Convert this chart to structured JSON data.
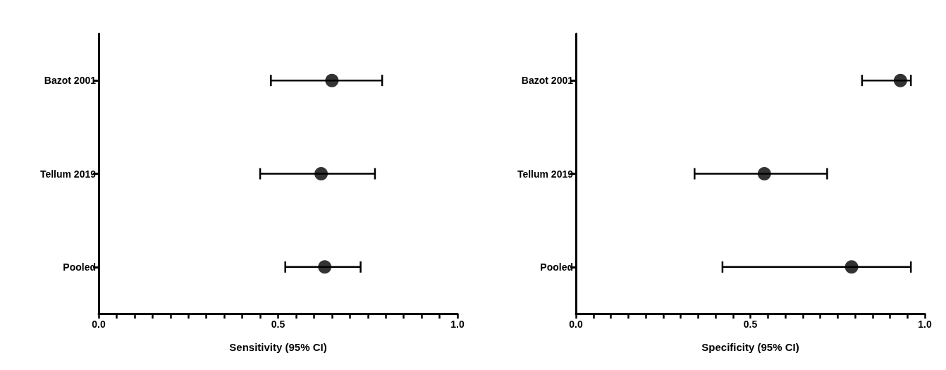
{
  "chart_data": [
    {
      "type": "scatter",
      "orientation": "horizontal",
      "categories": [
        "Bazot 2001",
        "Tellum 2019",
        "Pooled"
      ],
      "values": [
        0.65,
        0.62,
        0.63
      ],
      "errors": [
        [
          0.48,
          0.79
        ],
        [
          0.45,
          0.77
        ],
        [
          0.52,
          0.73
        ]
      ],
      "color": "#000000",
      "marker": "circle",
      "xlabel": "Sensitivity (95% CI)",
      "xlim": [
        0,
        1
      ],
      "xticks": [
        {
          "value": 0,
          "label": "0.0"
        },
        {
          "value": 0.05,
          "label": null
        },
        {
          "value": 0.1,
          "label": null
        },
        {
          "value": 0.15,
          "label": null
        },
        {
          "value": 0.2,
          "label": null
        },
        {
          "value": 0.25,
          "label": null
        },
        {
          "value": 0.3,
          "label": null
        },
        {
          "value": 0.35,
          "label": null
        },
        {
          "value": 0.4,
          "label": null
        },
        {
          "value": 0.45,
          "label": null
        },
        {
          "value": 0.5,
          "label": "0.5"
        },
        {
          "value": 0.55,
          "label": null
        },
        {
          "value": 0.6,
          "label": null
        },
        {
          "value": 0.65,
          "label": null
        },
        {
          "value": 0.7,
          "label": null
        },
        {
          "value": 0.75,
          "label": null
        },
        {
          "value": 0.8,
          "label": null
        },
        {
          "value": 0.85,
          "label": null
        },
        {
          "value": 0.9,
          "label": null
        },
        {
          "value": 0.95,
          "label": null
        },
        {
          "value": 1,
          "label": "1.0"
        }
      ]
    },
    {
      "type": "scatter",
      "orientation": "horizontal",
      "categories": [
        "Bazot 2001",
        "Tellum 2019",
        "Pooled"
      ],
      "values": [
        0.93,
        0.54,
        0.79
      ],
      "errors": [
        [
          0.82,
          0.96
        ],
        [
          0.34,
          0.72
        ],
        [
          0.42,
          0.96
        ]
      ],
      "color": "#000000",
      "marker": "circle",
      "xlabel": "Specificity (95% CI)",
      "xlim": [
        0,
        1
      ],
      "xticks": [
        {
          "value": 0,
          "label": "0.0"
        },
        {
          "value": 0.05,
          "label": null
        },
        {
          "value": 0.1,
          "label": null
        },
        {
          "value": 0.15,
          "label": null
        },
        {
          "value": 0.2,
          "label": null
        },
        {
          "value": 0.25,
          "label": null
        },
        {
          "value": 0.3,
          "label": null
        },
        {
          "value": 0.35,
          "label": null
        },
        {
          "value": 0.4,
          "label": null
        },
        {
          "value": 0.45,
          "label": null
        },
        {
          "value": 0.5,
          "label": "0.5"
        },
        {
          "value": 0.55,
          "label": null
        },
        {
          "value": 0.6,
          "label": null
        },
        {
          "value": 0.65,
          "label": null
        },
        {
          "value": 0.7,
          "label": null
        },
        {
          "value": 0.75,
          "label": null
        },
        {
          "value": 0.8,
          "label": null
        },
        {
          "value": 0.85,
          "label": null
        },
        {
          "value": 0.9,
          "label": null
        },
        {
          "value": 0.95,
          "label": null
        },
        {
          "value": 1,
          "label": "1.0"
        }
      ]
    }
  ]
}
